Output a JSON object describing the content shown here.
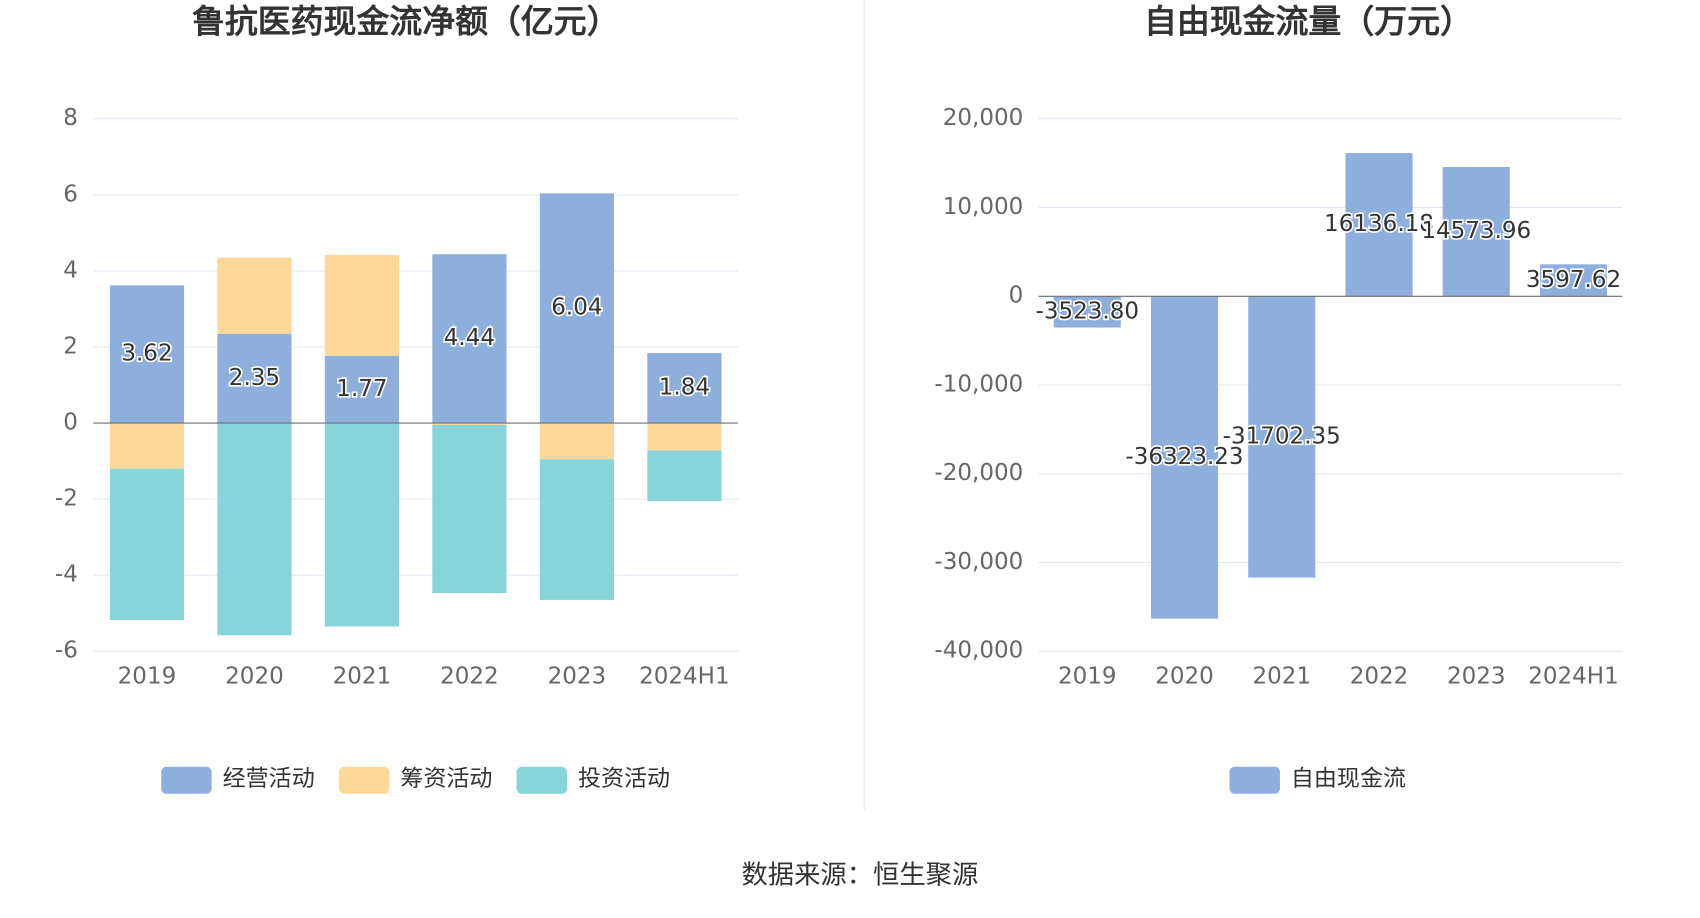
{
  "chart_data": [
    {
      "type": "bar",
      "stacked": true,
      "title": "鲁抗医药现金流净额（亿元）",
      "categories": [
        "2019",
        "2020",
        "2021",
        "2022",
        "2023",
        "2024H1"
      ],
      "series": [
        {
          "name": "经营活动",
          "color": "#8eaedb",
          "values": [
            3.62,
            2.35,
            1.77,
            4.44,
            6.04,
            1.84
          ]
        },
        {
          "name": "筹资活动",
          "color": "#fdd899",
          "values": [
            -1.2,
            2.0,
            2.65,
            -0.05,
            -0.95,
            -0.72
          ]
        },
        {
          "name": "投资活动",
          "color": "#87d5d9",
          "values": [
            -3.98,
            -5.58,
            -5.35,
            -4.42,
            -3.7,
            -1.33
          ]
        }
      ],
      "ylim": [
        -6,
        8
      ],
      "yticks": [
        -6,
        -4,
        -2,
        0,
        2,
        4,
        6,
        8
      ],
      "grid": true
    },
    {
      "type": "bar",
      "stacked": false,
      "title": "自由现金流量（万元）",
      "categories": [
        "2019",
        "2020",
        "2021",
        "2022",
        "2023",
        "2024H1"
      ],
      "series": [
        {
          "name": "自由现金流",
          "color": "#8eaedb",
          "values": [
            -3523.8,
            -36323.23,
            -31702.35,
            16136.18,
            14573.96,
            3597.62
          ],
          "value_labels": [
            "-3523.80",
            "-36323.23",
            "-31702.35",
            "16136.18",
            "14573.96",
            "3597.62"
          ]
        }
      ],
      "ylim": [
        -40000,
        20000
      ],
      "yticks": [
        {
          "value": -40000,
          "label": "-40,000"
        },
        {
          "value": -30000,
          "label": "-30,000"
        },
        {
          "value": -20000,
          "label": "-20,000"
        },
        {
          "value": -10000,
          "label": "-10,000"
        },
        0,
        {
          "value": 10000,
          "label": "10,000"
        },
        {
          "value": 20000,
          "label": "20,000"
        }
      ],
      "grid": true
    }
  ],
  "footer": "数据来源：恒生聚源"
}
